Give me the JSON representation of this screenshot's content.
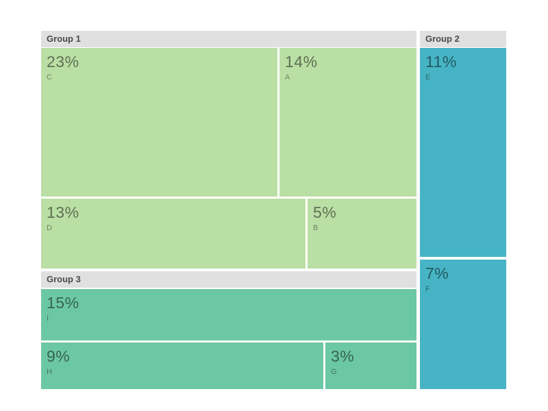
{
  "chart_data": {
    "type": "treemap",
    "title": "",
    "unit": "percent",
    "colors": {
      "group1_tile": "#badfa5",
      "group2_tile": "#46b4c4",
      "group3_tile": "#6cc7a5",
      "header_background": "#e0e0e0",
      "header_text": "#4a4a4a",
      "background": "#ffffff"
    },
    "groups": [
      {
        "name": "Group 1",
        "color": "#badfa5",
        "total": 55,
        "children": [
          {
            "label": "C",
            "value": 23,
            "pct": "23%"
          },
          {
            "label": "A",
            "value": 14,
            "pct": "14%"
          },
          {
            "label": "D",
            "value": 13,
            "pct": "13%"
          },
          {
            "label": "B",
            "value": 5,
            "pct": "5%"
          }
        ]
      },
      {
        "name": "Group 2",
        "color": "#46b4c4",
        "total": 18,
        "children": [
          {
            "label": "E",
            "value": 11,
            "pct": "11%"
          },
          {
            "label": "F",
            "value": 7,
            "pct": "7%"
          }
        ]
      },
      {
        "name": "Group 3",
        "color": "#6cc7a5",
        "total": 27,
        "children": [
          {
            "label": "I",
            "value": 15,
            "pct": "15%"
          },
          {
            "label": "H",
            "value": 9,
            "pct": "9%"
          },
          {
            "label": "G",
            "value": 3,
            "pct": "3%"
          }
        ]
      }
    ]
  }
}
